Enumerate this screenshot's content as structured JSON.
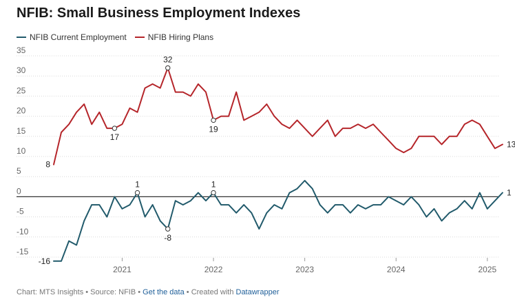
{
  "title": "NFIB: Small Business Employment Indexes",
  "colors": {
    "current": "#215a6b",
    "hiring": "#b5252a",
    "grid": "#d9d9d9",
    "zero": "#333333",
    "tick": "#666666",
    "label": "#222222"
  },
  "footer": {
    "chart_by": "Chart: MTS Insights",
    "sep1": " • ",
    "source": "Source: NFIB",
    "sep2": " • ",
    "get_data": "Get the data",
    "sep3": " • ",
    "created": "Created with ",
    "tool": "Datawrapper"
  },
  "chart_data": {
    "type": "line",
    "title": "NFIB: Small Business Employment Indexes",
    "ylim": [
      -15,
      35
    ],
    "yticks": [
      -15,
      -10,
      -5,
      0,
      5,
      10,
      15,
      20,
      25,
      30,
      35
    ],
    "ytick_labels": [
      "-15",
      "-10",
      "-5",
      "0",
      "5",
      "10",
      "15",
      "20",
      "25",
      "30",
      "35"
    ],
    "xlim": [
      2020.25,
      2025.25
    ],
    "xticks": [
      2021,
      2022,
      2023,
      2024,
      2025
    ],
    "xtick_labels": [
      "2021",
      "2022",
      "2023",
      "2024",
      "2025"
    ],
    "grid": true,
    "legend_position": "top-left",
    "series": [
      {
        "key": "current",
        "name": "NFIB Current Employment",
        "x_start": 2020.25,
        "step": 0.083333,
        "values": [
          -16,
          -16,
          -11,
          -12,
          -6,
          -2,
          -2,
          -5,
          0,
          -3,
          -2,
          1,
          -5,
          -2,
          -6,
          -8,
          -1,
          -2,
          -1,
          1,
          -1,
          1,
          -2,
          -2,
          -4,
          -2,
          -4,
          -8,
          -4,
          -2,
          -3,
          1,
          2,
          4,
          2,
          -2,
          -4,
          -2,
          -2,
          -4,
          -2,
          -3,
          -2,
          -2,
          0,
          -1,
          -2,
          0,
          -2,
          -5,
          -3,
          -6,
          -4,
          -3,
          -1,
          -3,
          1,
          -3,
          -1,
          1
        ]
      },
      {
        "key": "hiring",
        "name": "NFIB Hiring Plans",
        "x_start": 2020.25,
        "step": 0.083333,
        "values": [
          8,
          16,
          18,
          21,
          23,
          18,
          21,
          17,
          17,
          18,
          22,
          21,
          27,
          28,
          27,
          32,
          26,
          26,
          25,
          28,
          26,
          19,
          20,
          20,
          26,
          19,
          20,
          21,
          23,
          20,
          18,
          17,
          19,
          17,
          15,
          17,
          19,
          15,
          17,
          17,
          18,
          17,
          18,
          16,
          14,
          12,
          11,
          12,
          15,
          15,
          15,
          13,
          15,
          15,
          18,
          19,
          18,
          15,
          12,
          13
        ]
      }
    ],
    "annotations": [
      {
        "series": "current",
        "index": 0,
        "label": "-16",
        "marker": false,
        "pos": "left"
      },
      {
        "series": "current",
        "index": 11,
        "label": "1",
        "marker": true,
        "pos": "above"
      },
      {
        "series": "current",
        "index": 15,
        "label": "-8",
        "marker": true,
        "pos": "below"
      },
      {
        "series": "current",
        "index": 21,
        "label": "1",
        "marker": true,
        "pos": "above"
      },
      {
        "series": "current",
        "index": 59,
        "label": "1",
        "marker": false,
        "pos": "right"
      },
      {
        "series": "hiring",
        "index": 0,
        "label": "8",
        "marker": false,
        "pos": "left"
      },
      {
        "series": "hiring",
        "index": 8,
        "label": "17",
        "marker": true,
        "pos": "below"
      },
      {
        "series": "hiring",
        "index": 15,
        "label": "32",
        "marker": true,
        "pos": "above"
      },
      {
        "series": "hiring",
        "index": 21,
        "label": "19",
        "marker": true,
        "pos": "below"
      },
      {
        "series": "hiring",
        "index": 59,
        "label": "13",
        "marker": false,
        "pos": "right"
      }
    ]
  }
}
